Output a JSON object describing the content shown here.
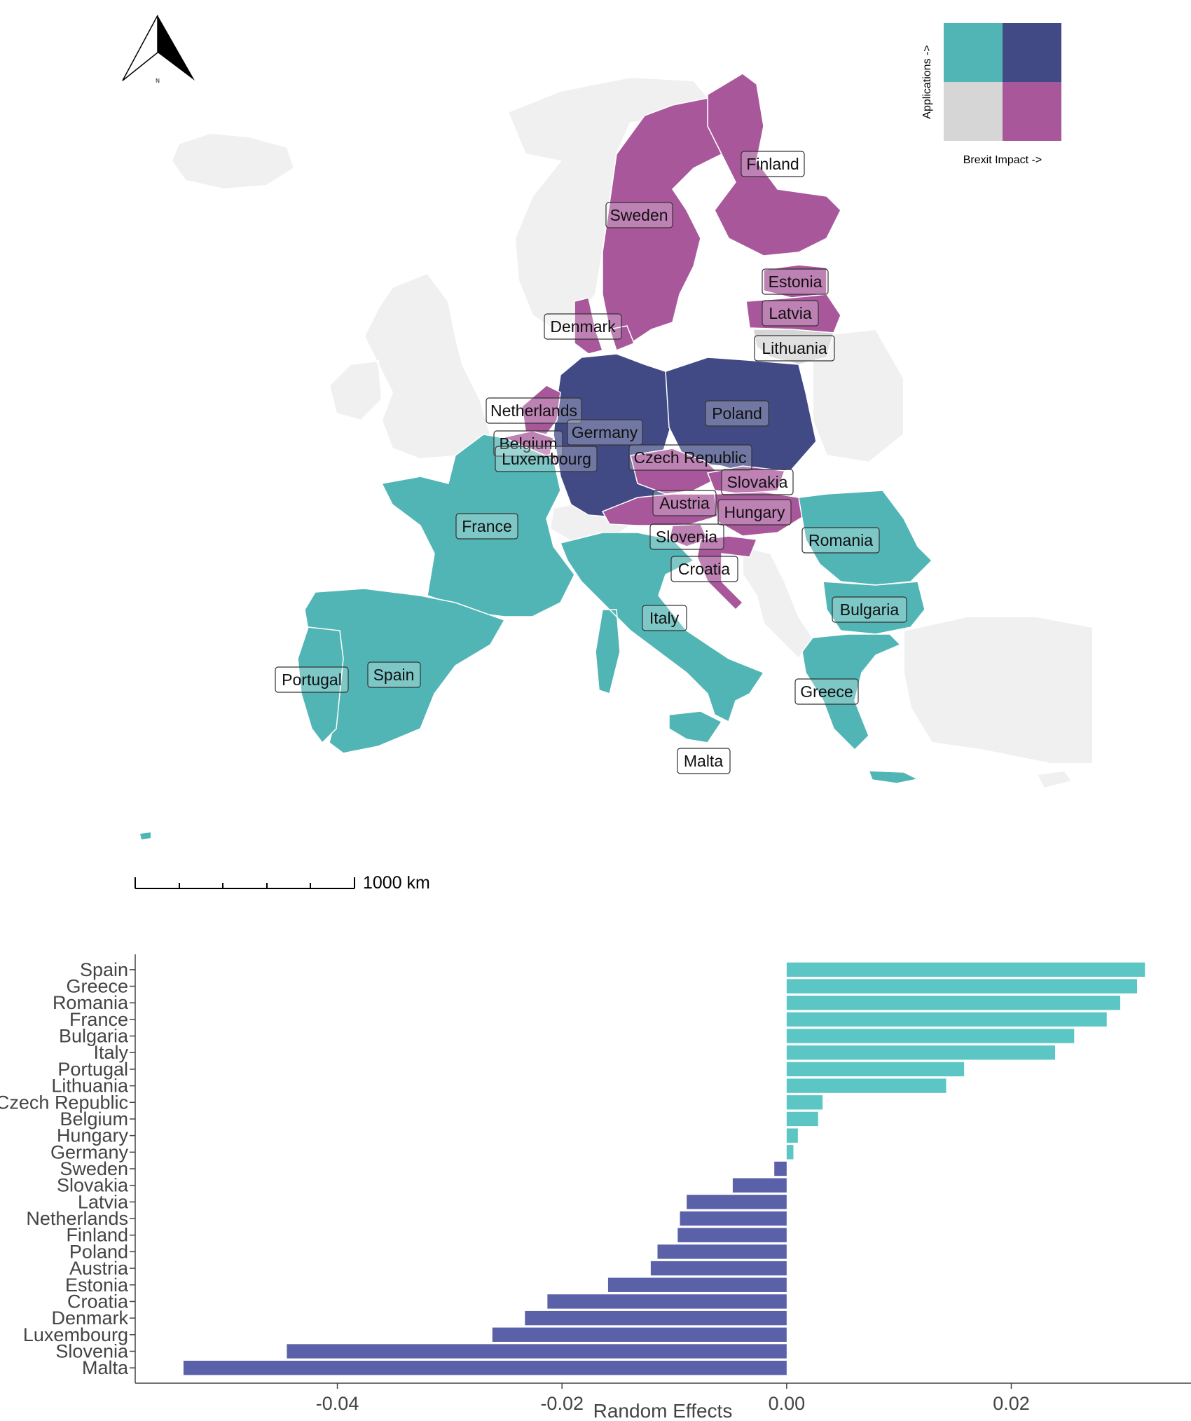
{
  "legend": {
    "y_label": "Applications ->",
    "x_label": "Brexit Impact ->",
    "colors": {
      "high_app_low_brexit": "#52b5b5",
      "high_app_high_brexit": "#414a85",
      "low_app_low_brexit": "#d6d6d6",
      "low_app_high_brexit": "#a9579b"
    }
  },
  "north_arrow": {
    "label": "N"
  },
  "scale_bar": {
    "label": "1000 km"
  },
  "map_labels": [
    "Finland",
    "Sweden",
    "Estonia",
    "Latvia",
    "Lithuania",
    "Denmark",
    "Netherlands",
    "Germany",
    "Poland",
    "Belgium",
    "Luxembourg",
    "Czech Republic",
    "Slovakia",
    "Austria",
    "Hungary",
    "France",
    "Romania",
    "Slovenia",
    "Croatia",
    "Bulgaria",
    "Italy",
    "Portugal",
    "Spain",
    "Greece",
    "Malta"
  ],
  "chart_data": {
    "type": "bar",
    "orientation": "horizontal",
    "categories": [
      "Spain",
      "Greece",
      "Romania",
      "France",
      "Bulgaria",
      "Italy",
      "Portugal",
      "Lithuania",
      "Czech Republic",
      "Belgium",
      "Hungary",
      "Germany",
      "Sweden",
      "Slovakia",
      "Latvia",
      "Netherlands",
      "Finland",
      "Poland",
      "Austria",
      "Estonia",
      "Croatia",
      "Denmark",
      "Luxembourg",
      "Slovenia",
      "Malta"
    ],
    "values": [
      0.0319,
      0.0312,
      0.0297,
      0.0285,
      0.0256,
      0.0239,
      0.0158,
      0.0142,
      0.0032,
      0.0028,
      0.001,
      0.0006,
      -0.0011,
      -0.0048,
      -0.0089,
      -0.0095,
      -0.0097,
      -0.0115,
      -0.0121,
      -0.0159,
      -0.0213,
      -0.0233,
      -0.0262,
      -0.0445,
      -0.0537
    ],
    "xlabel": "Random Effects",
    "ylabel": "",
    "xlim": [
      -0.058,
      0.036
    ],
    "xticks": [
      -0.04,
      -0.02,
      0.0,
      0.02
    ],
    "xtick_labels": [
      "-0.04",
      "-0.02",
      "0.00",
      "0.02"
    ],
    "colors": {
      "positive": "#5bc6c4",
      "negative": "#5a61a8"
    }
  }
}
